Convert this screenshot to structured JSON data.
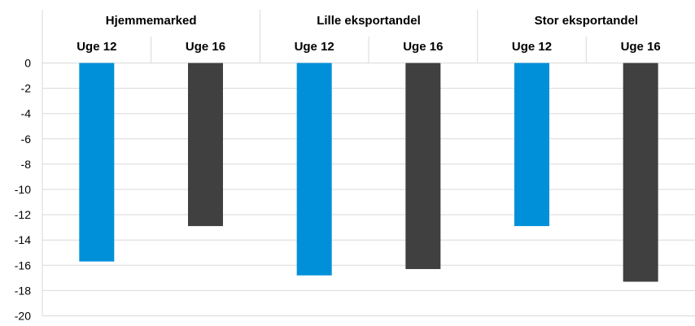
{
  "chart_data": {
    "type": "bar",
    "groups": [
      "Hjemmemarked",
      "Lille eksportandel",
      "Stor eksportandel"
    ],
    "categories": [
      "Uge 12",
      "Uge 16"
    ],
    "series": [
      {
        "group": "Hjemmemarked",
        "values": [
          -15.7,
          -12.9
        ]
      },
      {
        "group": "Lille eksportandel",
        "values": [
          -16.8,
          -16.3
        ]
      },
      {
        "group": "Stor eksportandel",
        "values": [
          -12.9,
          -17.3
        ]
      }
    ],
    "ylim": [
      -20,
      0
    ],
    "yticks": [
      "0",
      "-2",
      "-4",
      "-6",
      "-8",
      "-10",
      "-12",
      "-14",
      "-16",
      "-18",
      "-20"
    ],
    "grid": true,
    "colors": {
      "Uge 12": "#0090D9",
      "Uge 16": "#404040",
      "grid": "#D9D9D9"
    }
  }
}
